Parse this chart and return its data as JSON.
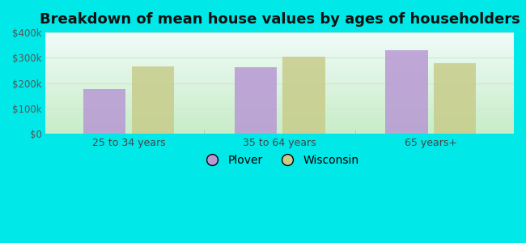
{
  "title": "Breakdown of mean house values by ages of householders",
  "categories": [
    "25 to 34 years",
    "35 to 64 years",
    "65 years+"
  ],
  "plover_values": [
    175000,
    262000,
    330000
  ],
  "wisconsin_values": [
    265000,
    305000,
    280000
  ],
  "plover_color": "#b899d4",
  "wisconsin_color": "#c8cc8a",
  "background_outer": "#00e8e8",
  "background_inner_bottom": "#c8edc8",
  "background_inner_top": "#f0fbf8",
  "ylim": [
    0,
    400000
  ],
  "yticks": [
    0,
    100000,
    200000,
    300000,
    400000
  ],
  "ytick_labels": [
    "$0",
    "$100k",
    "$200k",
    "$300k",
    "$400k"
  ],
  "legend_labels": [
    "Plover",
    "Wisconsin"
  ],
  "bar_width": 0.28,
  "title_fontsize": 13,
  "grid_color": "#d0e8d0"
}
